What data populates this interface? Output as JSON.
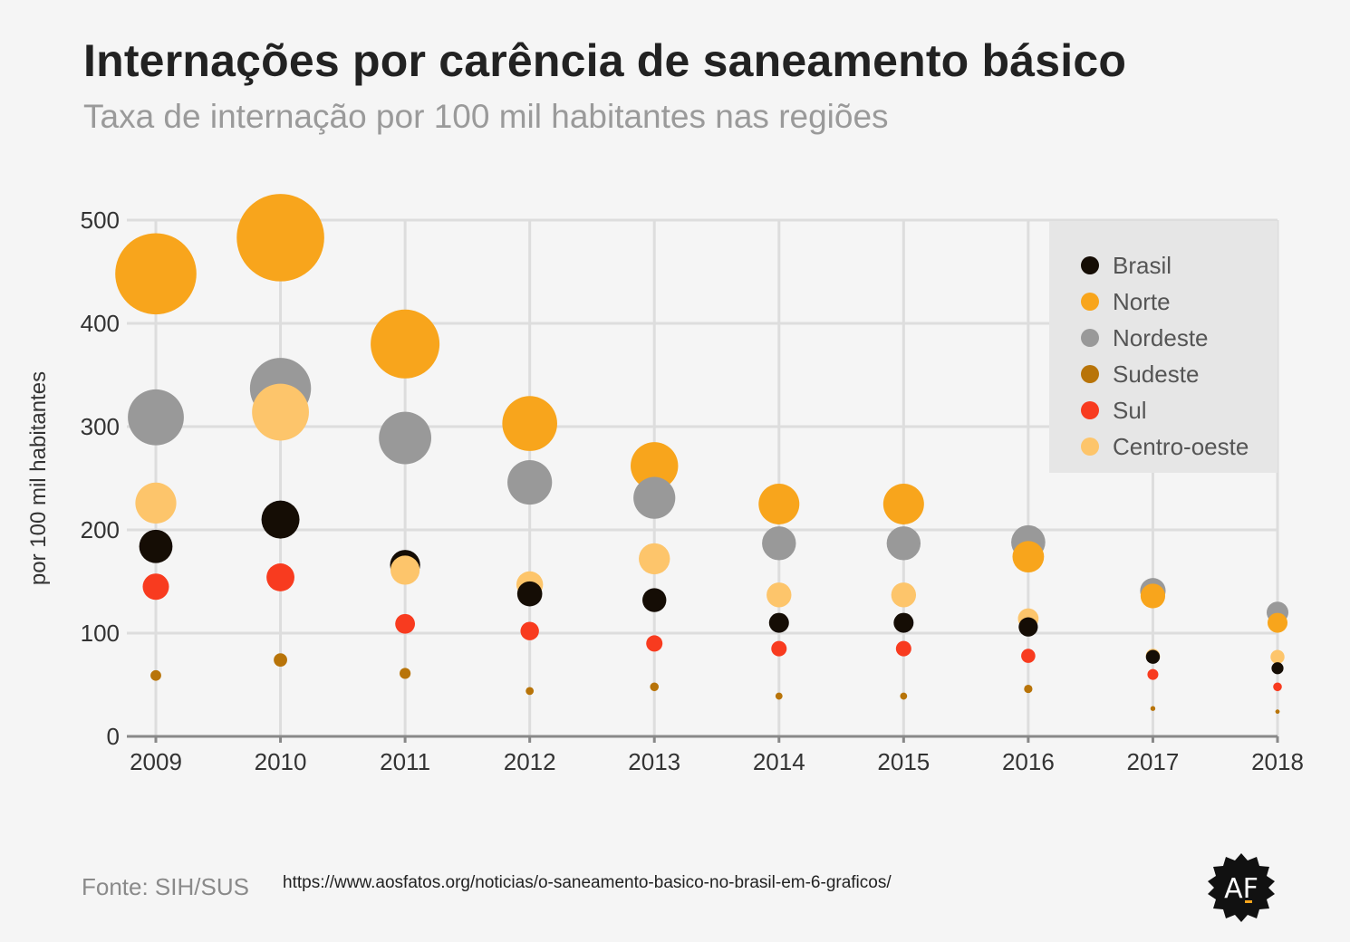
{
  "header": {
    "title": "Internações por carência de saneamento básico",
    "subtitle": "Taxa de internação por 100 mil habitantes nas regiões"
  },
  "footer": {
    "source": "Fonte: SIH/SUS",
    "url": "https://www.aosfatos.org/noticias/o-saneamento-basico-no-brasil-em-6-graficos/",
    "logo_text": "AF"
  },
  "chart_data": {
    "type": "scatter",
    "encoding": "bubble",
    "title": "Internações por carência de saneamento básico",
    "subtitle": "Taxa de internação por 100 mil habitantes nas regiões",
    "xlabel": "",
    "ylabel": "por 100 mil habitantes",
    "x": [
      "2009",
      "2010",
      "2011",
      "2012",
      "2013",
      "2014",
      "2015",
      "2016",
      "2017",
      "2018"
    ],
    "ylim": [
      0,
      500
    ],
    "yticks": [
      0,
      100,
      200,
      300,
      400,
      500
    ],
    "grid": true,
    "legend_position": "top-right",
    "series": [
      {
        "name": "Brasil",
        "color": "#150d05",
        "values": [
          184,
          210,
          166,
          138,
          132,
          110,
          110,
          106,
          77,
          66
        ]
      },
      {
        "name": "Norte",
        "color": "#f8a51c",
        "values": [
          448,
          483,
          380,
          303,
          262,
          225,
          225,
          174,
          136,
          110
        ]
      },
      {
        "name": "Nordeste",
        "color": "#999999",
        "values": [
          309,
          337,
          289,
          246,
          231,
          187,
          187,
          188,
          141,
          120
        ]
      },
      {
        "name": "Sudeste",
        "color": "#b87409",
        "values": [
          59,
          74,
          61,
          44,
          48,
          39,
          39,
          46,
          27,
          24
        ]
      },
      {
        "name": "Sul",
        "color": "#f83b1f",
        "values": [
          145,
          154,
          109,
          102,
          90,
          85,
          85,
          78,
          60,
          48
        ]
      },
      {
        "name": "Centro-oeste",
        "color": "#fdc56b",
        "values": [
          226,
          314,
          161,
          147,
          172,
          137,
          137,
          114,
          78,
          77
        ]
      }
    ]
  }
}
